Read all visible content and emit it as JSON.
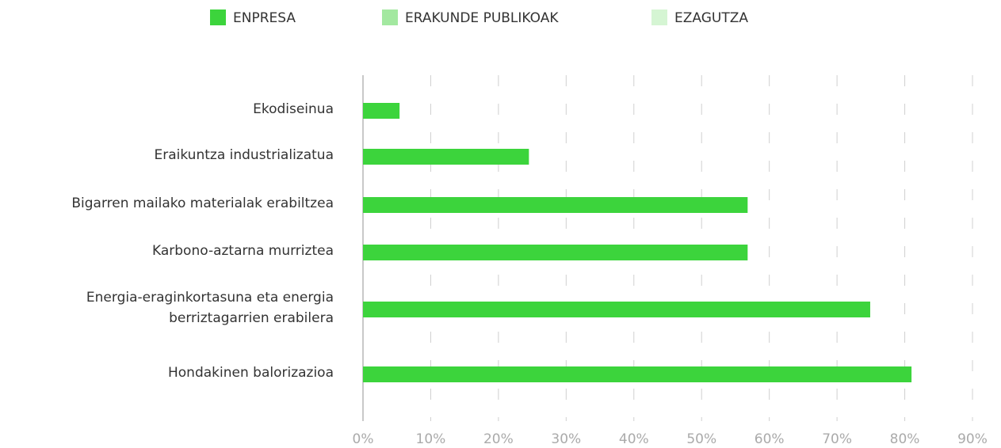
{
  "chart_data": {
    "type": "bar",
    "orientation": "horizontal",
    "categories": [
      "Ekodiseinua",
      "Eraikuntza industrializatua",
      "Bigarren mailako materialak erabiltzea",
      "Karbono-aztarna murriztea",
      "Energia-eraginkortasuna eta energia\nberriztagarrien erabilera",
      "Hondakinen balorizazioa"
    ],
    "series": [
      {
        "name": "ENPRESA",
        "color": "#3cd43c",
        "values": [
          5.4,
          24.5,
          56.8,
          56.8,
          74.9,
          81.0
        ]
      },
      {
        "name": "ERAKUNDE PUBLIKOAK",
        "color": "#a3e8a0",
        "values": [
          null,
          null,
          null,
          null,
          null,
          null
        ]
      },
      {
        "name": "EZAGUTZA",
        "color": "#d5f5d3",
        "values": [
          null,
          null,
          null,
          null,
          null,
          null
        ]
      }
    ],
    "xlim": [
      0,
      90
    ],
    "xticks": [
      {
        "value": 0,
        "label": "0%"
      },
      {
        "value": 10,
        "label": "10%"
      },
      {
        "value": 20,
        "label": "20%"
      },
      {
        "value": 30,
        "label": "30%"
      },
      {
        "value": 40,
        "label": "40%"
      },
      {
        "value": 50,
        "label": "50%"
      },
      {
        "value": 60,
        "label": "60%"
      },
      {
        "value": 70,
        "label": "70%"
      },
      {
        "value": 80,
        "label": "80%"
      },
      {
        "value": 90,
        "label": "90%"
      }
    ],
    "grid": true,
    "legend": "top"
  }
}
